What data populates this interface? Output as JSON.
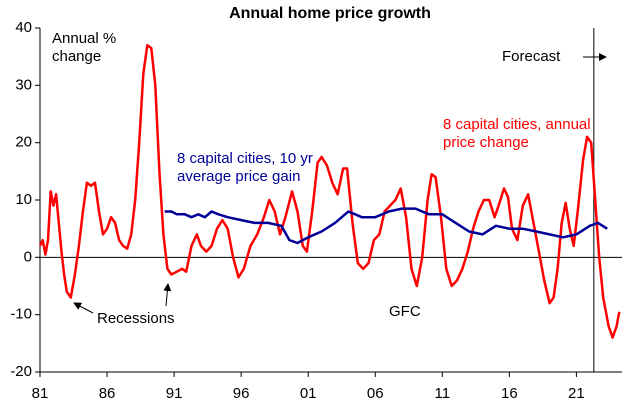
{
  "chart_data": {
    "type": "line",
    "title": "Annual home price growth",
    "y_label": "Annual % change",
    "xlim": [
      1981,
      2024.4
    ],
    "ylim": [
      -20,
      40
    ],
    "xticks": [
      {
        "value": 1981,
        "label": "81"
      },
      {
        "value": 1986,
        "label": "86"
      },
      {
        "value": 1991,
        "label": "91"
      },
      {
        "value": 1996,
        "label": "96"
      },
      {
        "value": 2001,
        "label": "01"
      },
      {
        "value": 2006,
        "label": "06"
      },
      {
        "value": 2011,
        "label": "11"
      },
      {
        "value": 2016,
        "label": "16"
      },
      {
        "value": 2021,
        "label": "21"
      }
    ],
    "yticks": [
      -20,
      -10,
      0,
      10,
      20,
      30,
      40
    ],
    "grid": false,
    "forecast_start": 2022.3,
    "annotations": [
      "Recessions",
      "GFC",
      "Forecast"
    ],
    "series": [
      {
        "name": "8 capital cities, annual price change",
        "color": "#ff0000",
        "x": [
          1981.0,
          1981.2,
          1981.4,
          1981.6,
          1981.8,
          1982.0,
          1982.2,
          1982.4,
          1982.6,
          1982.8,
          1983.0,
          1983.3,
          1983.6,
          1983.9,
          1984.2,
          1984.5,
          1984.8,
          1985.1,
          1985.4,
          1985.7,
          1986.0,
          1986.3,
          1986.6,
          1986.9,
          1987.2,
          1987.5,
          1987.8,
          1988.1,
          1988.4,
          1988.7,
          1989.0,
          1989.3,
          1989.6,
          1989.9,
          1990.2,
          1990.5,
          1990.8,
          1991.2,
          1991.6,
          1991.9,
          1992.3,
          1992.7,
          1993.0,
          1993.4,
          1993.8,
          1994.2,
          1994.6,
          1995.0,
          1995.4,
          1995.8,
          1996.2,
          1996.7,
          1997.2,
          1997.7,
          1998.1,
          1998.5,
          1998.9,
          1999.3,
          1999.8,
          2000.2,
          2000.6,
          2000.9,
          2001.3,
          2001.7,
          2002.0,
          2002.4,
          2002.8,
          2003.2,
          2003.6,
          2003.9,
          2004.3,
          2004.7,
          2005.1,
          2005.5,
          2005.9,
          2006.3,
          2006.7,
          2007.1,
          2007.5,
          2007.9,
          2008.3,
          2008.7,
          2009.1,
          2009.5,
          2009.9,
          2010.2,
          2010.5,
          2010.9,
          2011.3,
          2011.7,
          2012.1,
          2012.5,
          2012.9,
          2013.3,
          2013.7,
          2014.1,
          2014.5,
          2014.9,
          2015.2,
          2015.6,
          2015.9,
          2016.2,
          2016.6,
          2017.0,
          2017.4,
          2017.8,
          2018.2,
          2018.6,
          2019.0,
          2019.3,
          2019.6,
          2019.9,
          2020.2,
          2020.5,
          2020.8,
          2021.1,
          2021.5,
          2021.8,
          2022.1,
          2022.4,
          2022.7,
          2023.0,
          2023.4,
          2023.7,
          2024.0,
          2024.2
        ],
        "values": [
          2,
          3,
          0.5,
          3,
          11.5,
          9,
          11,
          6,
          1,
          -3,
          -6,
          -7,
          -3,
          2,
          8,
          13,
          12.5,
          13,
          8,
          4,
          5,
          7,
          6,
          3,
          2,
          1.5,
          4,
          10,
          20,
          32,
          37,
          36.5,
          30,
          15,
          4,
          -2,
          -3,
          -2.5,
          -2,
          -2.5,
          2,
          4,
          2,
          1,
          2,
          5,
          6.5,
          5,
          0,
          -3.5,
          -2,
          2,
          4,
          7,
          10,
          8,
          4,
          7,
          11.5,
          8,
          2,
          1,
          8,
          16.5,
          17.5,
          16,
          13,
          11,
          15.5,
          15.5,
          6,
          -1,
          -2,
          -1,
          3,
          4,
          8,
          9,
          10,
          12,
          7,
          -2,
          -5,
          0,
          10,
          14.5,
          14,
          7,
          -2,
          -5,
          -4,
          -2,
          1,
          5,
          8,
          10,
          10,
          7,
          9,
          12,
          10.5,
          5,
          3,
          9,
          11,
          6,
          1,
          -4,
          -8,
          -7,
          -2,
          6,
          9.5,
          5,
          2,
          8,
          17,
          21,
          20,
          10,
          0,
          -7,
          -12,
          -14,
          -12,
          -9.5
        ]
      },
      {
        "name": "8 capital cities, 10 yr average price gain",
        "color": "#000099",
        "x": [
          1990.3,
          1990.8,
          1991.2,
          1991.8,
          1992.3,
          1992.8,
          1993.3,
          1993.8,
          1994.3,
          1995,
          1996,
          1997,
          1998,
          1999,
          1999.6,
          2000.2,
          2001,
          2002,
          2003,
          2004,
          2004.5,
          2005,
          2006,
          2007,
          2008,
          2009,
          2010,
          2011,
          2012,
          2013,
          2014,
          2015,
          2016,
          2017,
          2018,
          2019,
          2020,
          2021,
          2022,
          2022.6,
          2023.3
        ],
        "values": [
          8,
          8,
          7.5,
          7.5,
          7,
          7.5,
          7,
          8,
          7.5,
          7,
          6.5,
          6,
          6,
          5.5,
          3,
          2.5,
          3.5,
          4.5,
          6,
          8,
          7.5,
          7,
          7,
          8,
          8.5,
          8.5,
          7.5,
          7.5,
          6,
          4.5,
          4,
          5.5,
          5,
          5,
          4.5,
          4,
          3.5,
          4,
          5.5,
          6,
          5
        ]
      }
    ]
  }
}
